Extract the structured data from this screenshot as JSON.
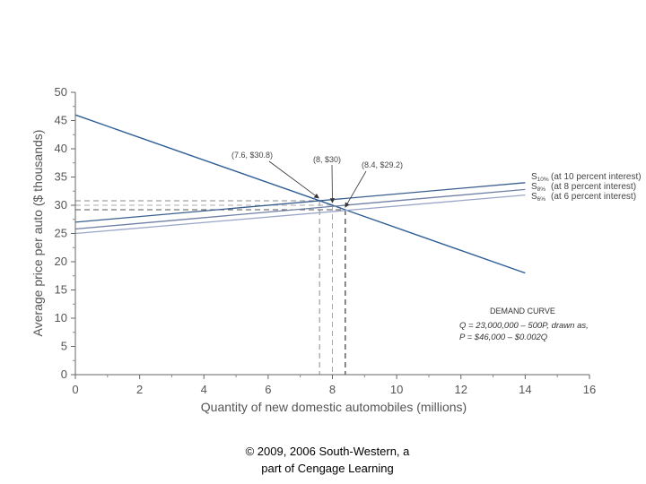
{
  "chart_data": {
    "type": "line",
    "title": "",
    "xlabel": "Quantity of new domestic automobiles (millions)",
    "ylabel": "Average price per auto ($ thousands)",
    "xlim": [
      0,
      16
    ],
    "ylim": [
      0,
      50
    ],
    "x_ticks": [
      0,
      2,
      4,
      6,
      8,
      10,
      12,
      14,
      16
    ],
    "y_ticks": [
      0,
      5,
      10,
      15,
      20,
      25,
      30,
      35,
      40,
      45,
      50
    ],
    "grid": false,
    "series": [
      {
        "name": "Demand curve",
        "color": "#2c5d95",
        "x": [
          0,
          14
        ],
        "y": [
          46,
          18
        ]
      },
      {
        "name": "S10%",
        "sub": "10%",
        "label": "(at 10 percent interest)",
        "color": "#3a5f8f",
        "x": [
          0,
          14
        ],
        "y": [
          27,
          34
        ]
      },
      {
        "name": "S8%",
        "sub": "8%",
        "label": "(at 8 percent interest)",
        "color": "#6f7fa6",
        "x": [
          0,
          14
        ],
        "y": [
          25.8,
          32.8
        ]
      },
      {
        "name": "S6%",
        "sub": "6%",
        "label": "(at 6 percent interest)",
        "color": "#9aa5c8",
        "x": [
          0,
          14
        ],
        "y": [
          25,
          31.8
        ]
      }
    ],
    "annotations": [
      {
        "text": "(7.6, $30.8)",
        "x": 7.6,
        "y": 30.8
      },
      {
        "text": "(8, $30)",
        "x": 8,
        "y": 30
      },
      {
        "text": "(8.4, $29.2)",
        "x": 8.4,
        "y": 29.2
      }
    ],
    "demand_box": {
      "title": "DEMAND CURVE",
      "line1": "Q = 23,000,000 – 500P, drawn as,",
      "line2": "P = $46,000 – $0.002Q"
    }
  },
  "footer": {
    "line1": "© 2009, 2006 South-Western, a",
    "line2": "part of Cengage Learning"
  }
}
